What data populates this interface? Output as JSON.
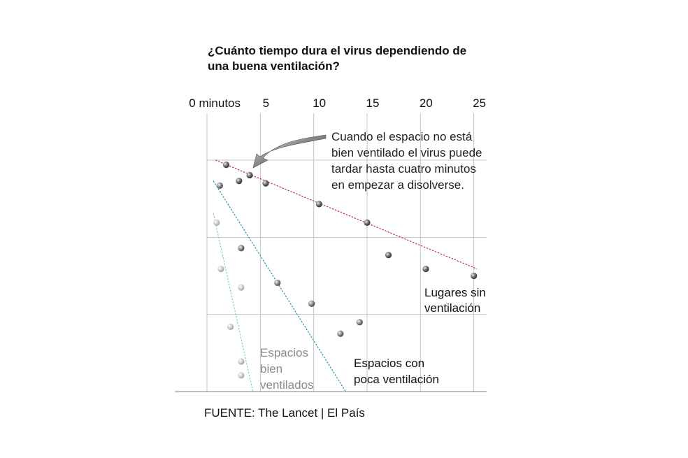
{
  "chart_data": {
    "type": "scatter",
    "title_lines": [
      "¿Cuánto tiempo dura el virus dependiendo de",
      "una buena ventilación?"
    ],
    "x_ticks": [
      "0 minutos",
      "5",
      "10",
      "15",
      "20",
      "25"
    ],
    "x_tick_values": [
      0,
      5,
      10,
      15,
      20,
      25
    ],
    "xlim": [
      0,
      26.2
    ],
    "ylim": [
      0,
      100
    ],
    "grid": true,
    "annotation_lines": [
      "Cuando el espacio no está",
      "bien ventilado el virus puede",
      "tardar hasta cuatro minutos",
      "en empezar a disolverse."
    ],
    "series": [
      {
        "name_lines": [
          "Lugares sin",
          "ventilación"
        ],
        "color": "#c2185b",
        "point_color": "#444444",
        "points": [
          {
            "x": 1.8,
            "y": 98
          },
          {
            "x": 3.0,
            "y": 91
          },
          {
            "x": 4.0,
            "y": 93.5
          },
          {
            "x": 5.5,
            "y": 90
          },
          {
            "x": 10.5,
            "y": 81
          },
          {
            "x": 15.0,
            "y": 73
          },
          {
            "x": 17.0,
            "y": 59
          },
          {
            "x": 20.5,
            "y": 53
          },
          {
            "x": 25.0,
            "y": 50
          }
        ],
        "trend": [
          [
            0.8,
            100
          ],
          [
            25.3,
            53
          ]
        ]
      },
      {
        "name_lines": [
          "Espacios con",
          "poca ventilación"
        ],
        "color": "#1a8bb0",
        "point_color": "#555555",
        "points": [
          {
            "x": 1.2,
            "y": 89
          },
          {
            "x": 3.2,
            "y": 62
          },
          {
            "x": 6.6,
            "y": 47
          },
          {
            "x": 9.8,
            "y": 38
          },
          {
            "x": 12.5,
            "y": 25
          },
          {
            "x": 14.3,
            "y": 30
          }
        ],
        "trend": [
          [
            0.6,
            91
          ],
          [
            13.0,
            0
          ]
        ]
      },
      {
        "name_lines": [
          "Espacios",
          "bien",
          "ventilados"
        ],
        "color": "#7fc6e0",
        "point_color": "#aaaaaa",
        "points": [
          {
            "x": 0.9,
            "y": 73
          },
          {
            "x": 1.3,
            "y": 53
          },
          {
            "x": 3.2,
            "y": 45
          },
          {
            "x": 2.2,
            "y": 28
          },
          {
            "x": 3.2,
            "y": 13
          },
          {
            "x": 3.2,
            "y": 7
          }
        ],
        "trend": [
          [
            0.6,
            77
          ],
          [
            4.3,
            0
          ]
        ]
      }
    ],
    "source": "FUENTE: The Lancet | El País"
  }
}
